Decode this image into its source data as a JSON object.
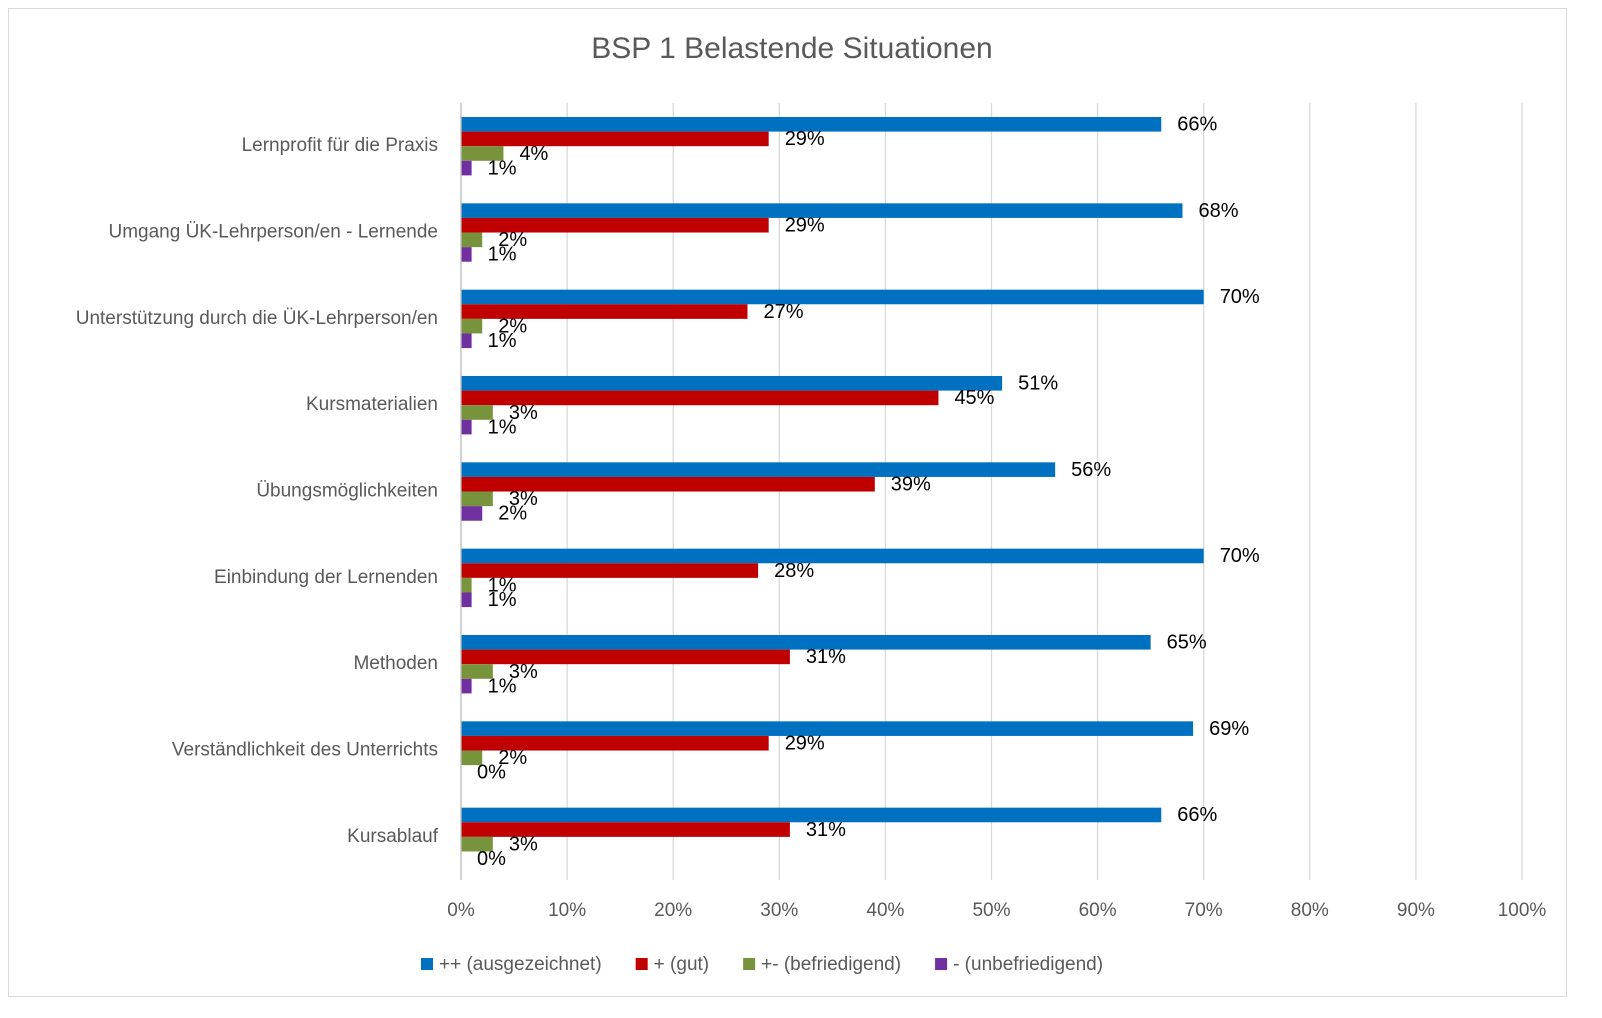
{
  "chart_data": {
    "type": "bar",
    "orientation": "horizontal",
    "title": "BSP 1 Belastende Situationen",
    "categories": [
      "Lernprofit für die Praxis",
      "Umgang ÜK-Lehrperson/en - Lernende",
      "Unterstützung durch die ÜK-Lehrperson/en",
      "Kursmaterialien",
      "Übungsmöglichkeiten",
      "Einbindung der Lernenden",
      "Methoden",
      "Verständlichkeit des Unterrichts",
      "Kursablauf"
    ],
    "series": [
      {
        "name": "++ (ausgezeichnet)",
        "color": "#0070c0",
        "values": [
          66,
          68,
          70,
          51,
          56,
          70,
          65,
          69,
          66
        ],
        "value_labels": [
          "66%",
          "68%",
          "70%",
          "51%",
          "56%",
          "70%",
          "65%",
          "69%",
          "66%"
        ]
      },
      {
        "name": "+ (gut)",
        "color": "#c00000",
        "values": [
          29,
          29,
          27,
          45,
          39,
          28,
          31,
          29,
          31
        ],
        "value_labels": [
          "29%",
          "29%",
          "27%",
          "45%",
          "39%",
          "28%",
          "31%",
          "29%",
          "31%"
        ]
      },
      {
        "name": "+- (befriedigend)",
        "color": "#77933c",
        "values": [
          4,
          2,
          2,
          3,
          3,
          1,
          3,
          2,
          3
        ],
        "value_labels": [
          "4%",
          "2%",
          "2%",
          "3%",
          "3%",
          "1%",
          "3%",
          "2%",
          "3%"
        ]
      },
      {
        "name": "- (unbefriedigend)",
        "color": "#7030a0",
        "values": [
          1,
          1,
          1,
          1,
          2,
          1,
          1,
          0,
          0
        ],
        "value_labels": [
          "1%",
          "1%",
          "1%",
          "1%",
          "2%",
          "1%",
          "1%",
          "0%",
          "0%"
        ]
      }
    ],
    "xlim": [
      0,
      100
    ],
    "xticks": [
      {
        "value": 0,
        "label": "0%"
      },
      {
        "value": 10,
        "label": "10%"
      },
      {
        "value": 20,
        "label": "20%"
      },
      {
        "value": 30,
        "label": "30%"
      },
      {
        "value": 40,
        "label": "40%"
      },
      {
        "value": 50,
        "label": "50%"
      },
      {
        "value": 60,
        "label": "60%"
      },
      {
        "value": 70,
        "label": "70%"
      },
      {
        "value": 80,
        "label": "80%"
      },
      {
        "value": 90,
        "label": "90%"
      },
      {
        "value": 100,
        "label": "100%"
      }
    ],
    "grid": true,
    "legend": "bottom"
  }
}
